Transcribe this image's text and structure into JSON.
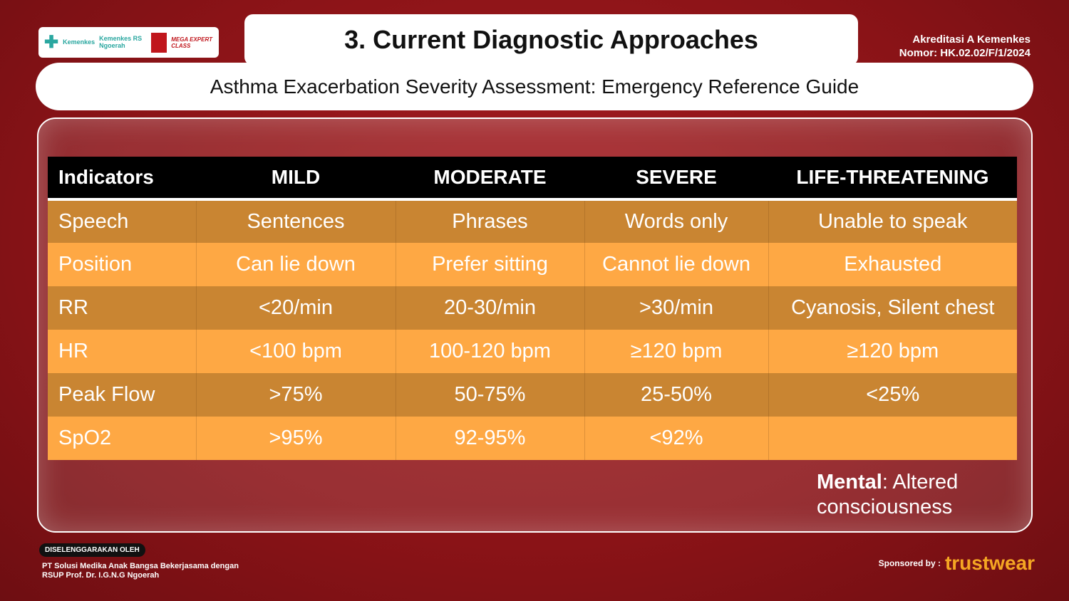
{
  "logos": {
    "kemenkes": "Kemenkes",
    "rs": "Kemenkes RS Ngoerah",
    "mega_expert": "MEGA EXPERT CLASS"
  },
  "title": "3. Current Diagnostic Approaches",
  "accreditation": {
    "line1": "Akreditasi A Kemenkes",
    "line2": "Nomor: HK.02.02/F/1/2024"
  },
  "subtitle": "Asthma Exacerbation Severity Assessment: Emergency Reference Guide",
  "table": {
    "headers": [
      "Indicators",
      "MILD",
      "MODERATE",
      "SEVERE",
      "LIFE-THREATENING"
    ],
    "rows": [
      [
        "Speech",
        "Sentences",
        "Phrases",
        "Words only",
        "Unable to speak"
      ],
      [
        "Position",
        "Can lie down",
        "Prefer sitting",
        "Cannot lie down",
        "Exhausted"
      ],
      [
        "RR",
        "<20/min",
        "20-30/min",
        ">30/min",
        "Cyanosis, Silent chest"
      ],
      [
        "HR",
        "<100 bpm",
        "100-120 bpm",
        "≥120 bpm",
        "≥120 bpm"
      ],
      [
        "Peak Flow",
        ">75%",
        "50-75%",
        "25-50%",
        "<25%"
      ],
      [
        "SpO2",
        ">95%",
        "92-95%",
        "<92%",
        ""
      ]
    ]
  },
  "note": {
    "label": "Mental",
    "text": ": Altered consciousness"
  },
  "footer": {
    "badge": "DISELENGGARAKAN OLEH",
    "org_line1": "PT Solusi Medika Anak Bangsa Bekerjasama dengan",
    "org_line2": "RSUP Prof. Dr. I.G.N.G Ngoerah",
    "sponsored": "Sponsored by :",
    "brand": "trustwear"
  },
  "colors": {
    "background": "#8e1418",
    "row_dark": "#c98532",
    "row_light": "#fea844",
    "header": "#000000",
    "brand": "#f5a623"
  }
}
